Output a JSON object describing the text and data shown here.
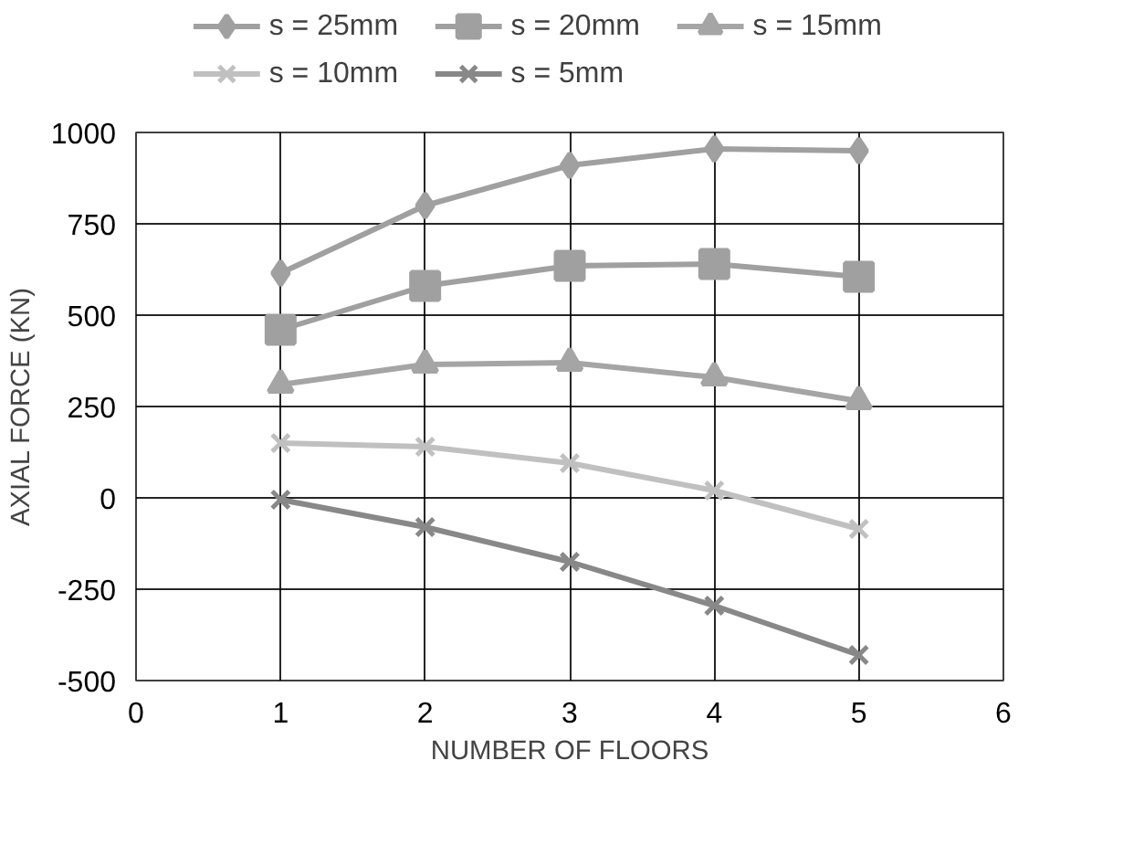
{
  "chart_data": {
    "type": "line",
    "xlabel": "NUMBER OF FLOORS",
    "ylabel": "AXIAL FORCE (KN)",
    "x": [
      1,
      2,
      3,
      4,
      5
    ],
    "series": [
      {
        "name": "s = 25mm",
        "color": "#a0a0a0",
        "marker": "diamond",
        "values": [
          615,
          800,
          910,
          955,
          950
        ]
      },
      {
        "name": "s = 20mm",
        "color": "#a0a0a0",
        "marker": "square",
        "values": [
          460,
          580,
          635,
          640,
          605
        ]
      },
      {
        "name": "s = 15mm",
        "color": "#a5a5a5",
        "marker": "triangle",
        "values": [
          310,
          365,
          370,
          330,
          265
        ]
      },
      {
        "name": "s = 10mm",
        "color": "#c0c0c0",
        "marker": "cross",
        "values": [
          150,
          140,
          95,
          20,
          -85
        ]
      },
      {
        "name": "s = 5mm",
        "color": "#888888",
        "marker": "cross",
        "values": [
          -5,
          -80,
          -175,
          -295,
          -430
        ]
      }
    ],
    "xlim": [
      0,
      6
    ],
    "xticks": [
      0,
      1,
      2,
      3,
      4,
      5,
      6
    ],
    "ylim": [
      -500,
      1000
    ],
    "yticks": [
      -500,
      -250,
      0,
      250,
      500,
      750,
      1000
    ],
    "grid": true,
    "legend": "top",
    "line_style": "solid"
  }
}
